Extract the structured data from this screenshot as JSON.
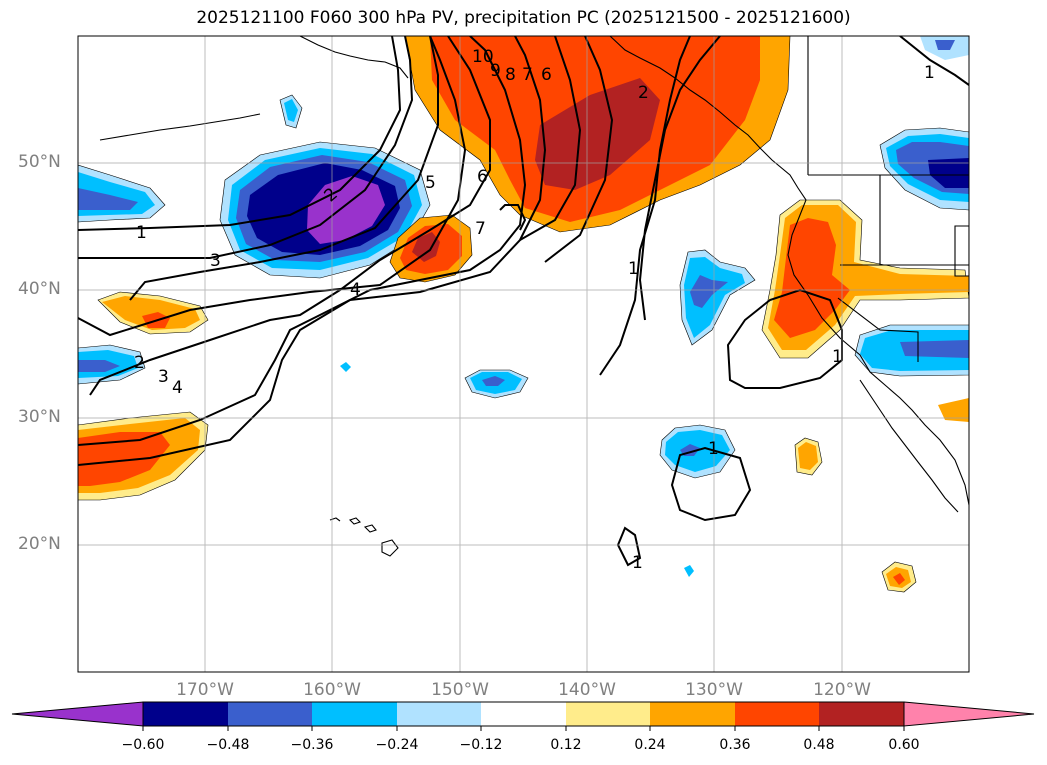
{
  "title": "2025121100 F060 300 hPa PV, precipitation PC (2025121500 - 2025121600)",
  "map": {
    "projection": "PlateCarree",
    "lon_range": [
      -180,
      -110
    ],
    "lat_range": [
      10,
      60
    ],
    "gridlines": true,
    "lat_labels": [
      "50°N",
      "40°N",
      "30°N",
      "20°N"
    ],
    "lon_labels": [
      "170°W",
      "160°W",
      "150°W",
      "140°W",
      "130°W",
      "120°W"
    ]
  },
  "colorbar": {
    "levels": [
      "−0.60",
      "−0.48",
      "−0.36",
      "−0.24",
      "−0.12",
      "0.12",
      "0.24",
      "0.36",
      "0.48",
      "0.60"
    ],
    "colors": [
      "#9932CC",
      "#00008B",
      "#3A5FCD",
      "#00BFFF",
      "#B0E2FF",
      "#FFFFFF",
      "#FFEC8B",
      "#FFA500",
      "#FF4500",
      "#B22222",
      "#FF82AB"
    ],
    "extend": "both"
  },
  "pv_contour_labels": [
    "1",
    "2",
    "3",
    "4",
    "5",
    "6",
    "7",
    "8",
    "9",
    "10"
  ]
}
